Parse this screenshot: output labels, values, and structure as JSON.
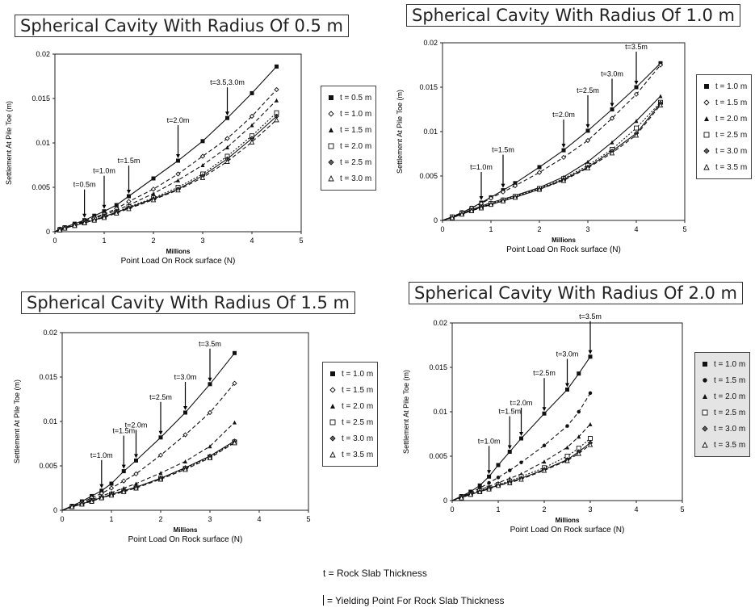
{
  "chart_data": [
    {
      "type": "line",
      "title": "Spherical Cavity With Radius Of 0.5 m",
      "xlabel": "Point Load On Rock surface (N)",
      "xunit": "Millions",
      "ylabel": "Settlement At Pile Toe (m)",
      "xlim": [
        0,
        5
      ],
      "ylim": [
        0,
        0.02
      ],
      "xticks": [
        "0",
        "1",
        "2",
        "3",
        "4",
        "5"
      ],
      "yticks": [
        "0",
        "0.005",
        "0.01",
        "0.015",
        "0.02"
      ],
      "x": [
        0,
        0.1,
        0.2,
        0.4,
        0.6,
        0.8,
        1.0,
        1.25,
        1.5,
        2.0,
        2.5,
        3.0,
        3.5,
        4.0,
        4.5
      ],
      "series": [
        {
          "name": "t = 0.5 m",
          "marker": "square-filled",
          "dash": "solid",
          "values": [
            0,
            0.0003,
            0.0005,
            0.0009,
            0.0013,
            0.0018,
            0.0023,
            0.003,
            0.004,
            0.006,
            0.008,
            0.0102,
            0.0128,
            0.0156,
            0.0186
          ]
        },
        {
          "name": "t = 1.0 m",
          "marker": "diamond-open",
          "dash": "dash",
          "values": [
            0,
            0.0003,
            0.0004,
            0.0008,
            0.0012,
            0.0016,
            0.002,
            0.0026,
            0.0034,
            0.0048,
            0.0065,
            0.0085,
            0.0105,
            0.013,
            0.016
          ]
        },
        {
          "name": "t = 1.5 m",
          "marker": "triangle-filled",
          "dash": "dash",
          "values": [
            0,
            0.0003,
            0.0004,
            0.0008,
            0.0011,
            0.0015,
            0.0019,
            0.0024,
            0.003,
            0.0043,
            0.0058,
            0.0075,
            0.0095,
            0.012,
            0.0148
          ]
        },
        {
          "name": "t = 2.0 m",
          "marker": "square-open",
          "dash": "dot",
          "values": [
            0,
            0.0002,
            0.0004,
            0.0007,
            0.001,
            0.0014,
            0.0017,
            0.0022,
            0.0028,
            0.0038,
            0.005,
            0.0065,
            0.0085,
            0.0108,
            0.0134
          ]
        },
        {
          "name": "t = 2.5 m",
          "marker": "cross-diamond",
          "dash": "solid",
          "values": [
            0,
            0.0002,
            0.0004,
            0.0007,
            0.001,
            0.0013,
            0.0017,
            0.0022,
            0.0027,
            0.0037,
            0.0048,
            0.0063,
            0.0082,
            0.0105,
            0.013
          ]
        },
        {
          "name": "t = 3.0 m",
          "marker": "triangle-open",
          "dash": "dash",
          "values": [
            0,
            0.0002,
            0.0004,
            0.0007,
            0.001,
            0.0013,
            0.0016,
            0.0021,
            0.0026,
            0.0036,
            0.0047,
            0.0061,
            0.0079,
            0.0101,
            0.0126
          ]
        }
      ],
      "annotations": [
        {
          "text": "t=0.5m",
          "x": 0.6
        },
        {
          "text": "t=1.0m",
          "x": 1.0
        },
        {
          "text": "t=1.5m",
          "x": 1.5
        },
        {
          "text": "t=2.0m",
          "x": 2.5
        },
        {
          "text": "t=3.5,3.0m",
          "x": 3.5
        }
      ]
    },
    {
      "type": "line",
      "title": "Spherical Cavity With Radius Of 1.0 m",
      "xlabel": "Point Load On Rock surface (N)",
      "xunit": "Millions",
      "ylabel": "Settlement At Pile Toe (m)",
      "xlim": [
        0,
        5
      ],
      "ylim": [
        0,
        0.02
      ],
      "xticks": [
        "0",
        "1",
        "2",
        "3",
        "4",
        "5"
      ],
      "yticks": [
        "0",
        "0.005",
        "0.01",
        "0.015",
        "0.02"
      ],
      "x": [
        0,
        0.2,
        0.4,
        0.6,
        0.8,
        1.0,
        1.25,
        1.5,
        2.0,
        2.5,
        3.0,
        3.5,
        4.0,
        4.5
      ],
      "series": [
        {
          "name": "t = 1.0 m",
          "marker": "square-filled",
          "dash": "solid",
          "values": [
            0,
            0.0004,
            0.0009,
            0.0014,
            0.002,
            0.0026,
            0.0034,
            0.0042,
            0.006,
            0.0079,
            0.0101,
            0.0125,
            0.015,
            0.0177
          ]
        },
        {
          "name": "t = 1.5 m",
          "marker": "diamond-open",
          "dash": "dash",
          "values": [
            0,
            0.0004,
            0.0009,
            0.0014,
            0.0019,
            0.0025,
            0.0032,
            0.0039,
            0.0054,
            0.0071,
            0.009,
            0.0115,
            0.0142,
            0.0175
          ]
        },
        {
          "name": "t = 2.0 m",
          "marker": "triangle-filled",
          "dash": "solid",
          "values": [
            0,
            0.0004,
            0.0008,
            0.0012,
            0.0016,
            0.002,
            0.0024,
            0.0028,
            0.0037,
            0.0049,
            0.0066,
            0.0088,
            0.0112,
            0.014
          ]
        },
        {
          "name": "t = 2.5 m",
          "marker": "square-open",
          "dash": "dot",
          "values": [
            0,
            0.0004,
            0.0008,
            0.0011,
            0.0015,
            0.0019,
            0.0023,
            0.0027,
            0.0036,
            0.0047,
            0.0062,
            0.008,
            0.0104,
            0.0133
          ]
        },
        {
          "name": "t = 3.0 m",
          "marker": "cross-diamond",
          "dash": "solid",
          "values": [
            0,
            0.0003,
            0.0007,
            0.0011,
            0.0015,
            0.0018,
            0.0022,
            0.0026,
            0.0035,
            0.0046,
            0.006,
            0.0078,
            0.0098,
            0.0132
          ]
        },
        {
          "name": "t = 3.5 m",
          "marker": "triangle-open",
          "dash": "dash",
          "values": [
            0,
            0.0003,
            0.0007,
            0.0011,
            0.0014,
            0.0018,
            0.0022,
            0.0026,
            0.0035,
            0.0045,
            0.0059,
            0.0076,
            0.0096,
            0.013
          ]
        }
      ],
      "annotations": [
        {
          "text": "t=1.0m",
          "x": 0.8
        },
        {
          "text": "t=1.5m",
          "x": 1.25
        },
        {
          "text": "t=2.0m",
          "x": 2.5
        },
        {
          "text": "t=2.5m",
          "x": 3.0
        },
        {
          "text": "t=3.0m",
          "x": 3.5
        },
        {
          "text": "t=3.5m",
          "x": 4.0
        }
      ]
    },
    {
      "type": "line",
      "title": "Spherical Cavity With Radius Of 1.5 m",
      "xlabel": "Point Load On Rock surface (N)",
      "xunit": "Millions",
      "ylabel": "Settlement At Pile Toe (m)",
      "xlim": [
        0,
        5
      ],
      "ylim": [
        0,
        0.02
      ],
      "xticks": [
        "0",
        "1",
        "2",
        "3",
        "4",
        "5"
      ],
      "yticks": [
        "0",
        "0.005",
        "0.01",
        "0.015",
        "0.02"
      ],
      "x": [
        0,
        0.2,
        0.4,
        0.6,
        0.8,
        1.0,
        1.25,
        1.5,
        2.0,
        2.5,
        3.0,
        3.5
      ],
      "series": [
        {
          "name": "t = 1.0 m",
          "marker": "square-filled",
          "dash": "solid",
          "values": [
            0,
            0.0005,
            0.001,
            0.0016,
            0.0022,
            0.003,
            0.0044,
            0.0056,
            0.0082,
            0.011,
            0.0142,
            0.0177
          ]
        },
        {
          "name": "t = 1.5 m",
          "marker": "diamond-open",
          "dash": "dash",
          "values": [
            0,
            0.0004,
            0.0009,
            0.0014,
            0.0019,
            0.0025,
            0.0033,
            0.0041,
            0.0062,
            0.0085,
            0.011,
            0.0143
          ]
        },
        {
          "name": "t = 2.0 m",
          "marker": "triangle-filled",
          "dash": "dash",
          "values": [
            0,
            0.0004,
            0.0008,
            0.0012,
            0.0016,
            0.002,
            0.0025,
            0.003,
            0.0042,
            0.0055,
            0.0072,
            0.0099
          ]
        },
        {
          "name": "t = 2.5 m",
          "marker": "square-open",
          "dash": "dot",
          "values": [
            0,
            0.0004,
            0.0007,
            0.0011,
            0.0014,
            0.0018,
            0.0022,
            0.0026,
            0.0036,
            0.0047,
            0.006,
            0.0077
          ]
        },
        {
          "name": "t = 3.0 m",
          "marker": "cross-diamond",
          "dash": "solid",
          "values": [
            0,
            0.0004,
            0.0007,
            0.0011,
            0.0014,
            0.0018,
            0.0022,
            0.0026,
            0.0036,
            0.0048,
            0.0061,
            0.0078
          ]
        },
        {
          "name": "t = 3.5 m",
          "marker": "triangle-open",
          "dash": "dash",
          "values": [
            0,
            0.0004,
            0.0007,
            0.001,
            0.0014,
            0.0017,
            0.0021,
            0.0025,
            0.0035,
            0.0046,
            0.0059,
            0.0076
          ]
        }
      ],
      "annotations": [
        {
          "text": "t=1.0m",
          "x": 0.8
        },
        {
          "text": "t=1.5m",
          "x": 1.25
        },
        {
          "text": "t=2.0m",
          "x": 1.5
        },
        {
          "text": "t=2.5m",
          "x": 2.0
        },
        {
          "text": "t=3.0m",
          "x": 2.5
        },
        {
          "text": "t=3.5m",
          "x": 3.0
        }
      ]
    },
    {
      "type": "line",
      "title": "Spherical Cavity With Radius Of 2.0 m",
      "xlabel": "Point Load On Rock surface (N)",
      "xunit": "Millions",
      "ylabel": "Settlement At Pile Toe (m)",
      "xlim": [
        0,
        5
      ],
      "ylim": [
        0,
        0.02
      ],
      "xticks": [
        "0",
        "1",
        "2",
        "3",
        "4",
        "5"
      ],
      "yticks": [
        "0",
        "0.005",
        "0.01",
        "0.015",
        "0.02"
      ],
      "x": [
        0,
        0.2,
        0.4,
        0.6,
        0.8,
        1.0,
        1.25,
        1.5,
        2.0,
        2.5,
        2.75,
        3.0
      ],
      "series": [
        {
          "name": "t = 1.0 m",
          "marker": "square-filled",
          "dash": "solid",
          "values": [
            0,
            0.0005,
            0.001,
            0.0017,
            0.0027,
            0.004,
            0.0055,
            0.007,
            0.0098,
            0.0125,
            0.0143,
            0.0162
          ]
        },
        {
          "name": "t = 1.5 m",
          "marker": "circle-filled",
          "dash": "dash",
          "values": [
            0,
            0.0004,
            0.0009,
            0.0014,
            0.002,
            0.0026,
            0.0034,
            0.0043,
            0.0062,
            0.0084,
            0.01,
            0.0121
          ]
        },
        {
          "name": "t = 2.0 m",
          "marker": "triangle-filled",
          "dash": "dash",
          "values": [
            0,
            0.0004,
            0.0008,
            0.0012,
            0.0016,
            0.002,
            0.0025,
            0.003,
            0.0044,
            0.006,
            0.0072,
            0.0086
          ]
        },
        {
          "name": "t = 2.5 m",
          "marker": "square-open",
          "dash": "dot",
          "values": [
            0,
            0.0004,
            0.0007,
            0.0011,
            0.0014,
            0.0018,
            0.0022,
            0.0027,
            0.0037,
            0.005,
            0.0059,
            0.007
          ]
        },
        {
          "name": "t = 3.0 m",
          "marker": "cross-diamond",
          "dash": "solid",
          "values": [
            0,
            0.0004,
            0.0007,
            0.001,
            0.0014,
            0.0017,
            0.0021,
            0.0025,
            0.0035,
            0.0046,
            0.0055,
            0.0065
          ]
        },
        {
          "name": "t = 3.5 m",
          "marker": "triangle-open",
          "dash": "dash",
          "values": [
            0,
            0.0003,
            0.0007,
            0.001,
            0.0013,
            0.0017,
            0.002,
            0.0024,
            0.0034,
            0.0045,
            0.0053,
            0.0063
          ]
        }
      ],
      "annotations": [
        {
          "text": "t=1.0m",
          "x": 0.8
        },
        {
          "text": "t=1.5m",
          "x": 1.25
        },
        {
          "text": "t=2.0m",
          "x": 1.5
        },
        {
          "text": "t=2.5m",
          "x": 2.0
        },
        {
          "text": "t=3.0m",
          "x": 2.5
        },
        {
          "text": "t=3.5m",
          "x": 3.0
        }
      ]
    }
  ],
  "footnotes": {
    "thickness": "t = Rock Slab Thickness",
    "yield": "= Yielding Point For Rock Slab Thickness"
  }
}
